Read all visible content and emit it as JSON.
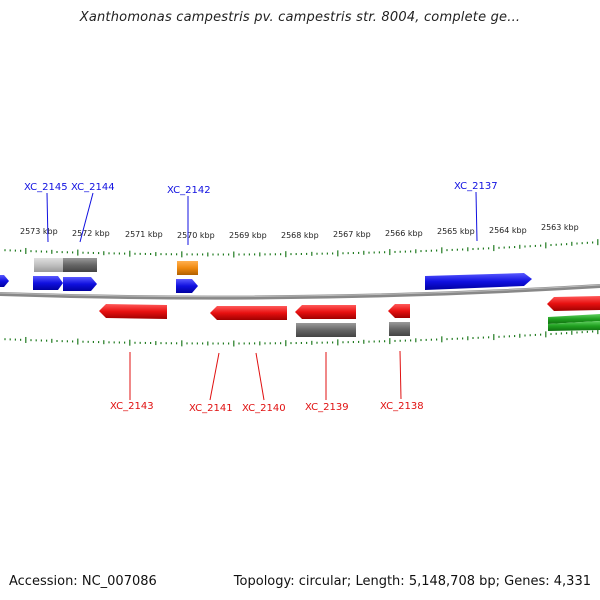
{
  "title": "Xanthomonas campestris pv. campestris str. 8004, complete ge...",
  "footer": {
    "accession_label": "Accession:",
    "accession": "NC_007086",
    "topology_label": "Topology:",
    "topology": "circular",
    "length_label": "Length:",
    "length": "5,148,708 bp",
    "genes_label": "Genes:",
    "genes": "4,331"
  },
  "colors": {
    "forward": "#1010e0",
    "reverse": "#e01010",
    "orange": "#f08a10",
    "gray": "#707070",
    "lightgray": "#c0c0c0",
    "green": "#20a020",
    "axis": "#888888",
    "ticks": "#1f7a1f"
  },
  "ruler": {
    "labels": [
      "2573 kbp",
      "2572 kbp",
      "2571 kbp",
      "2570 kbp",
      "2569 kbp",
      "2568 kbp",
      "2567 kbp",
      "2566 kbp",
      "2565 kbp",
      "2564 kbp",
      "2563 kbp"
    ]
  },
  "gene_labels": {
    "top": [
      "XC_2145",
      "XC_2144",
      "XC_2142",
      "XC_2137"
    ],
    "bottom": [
      "XC_2143",
      "XC_2141",
      "XC_2140",
      "XC_2139",
      "XC_2138"
    ]
  }
}
